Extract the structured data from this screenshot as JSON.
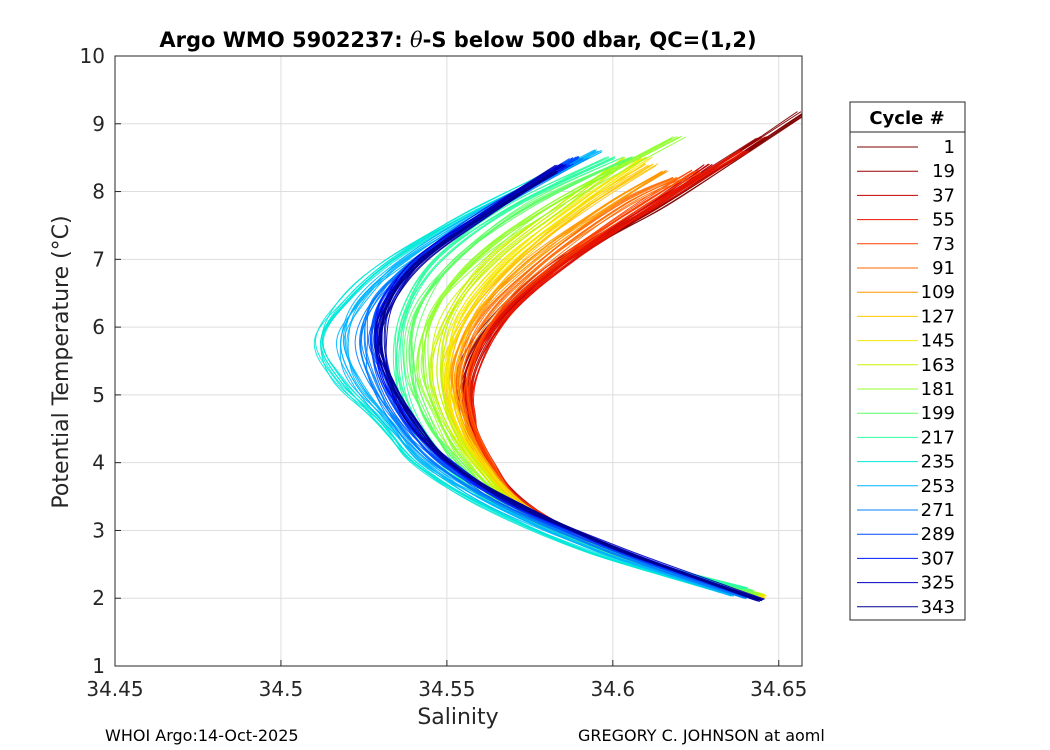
{
  "chart_data": {
    "type": "line",
    "title_prefix": "Argo WMO 5902237: ",
    "title_theta": "θ",
    "title_suffix": "-S below 500 dbar,  QC=(1,2)",
    "xlabel": "Salinity",
    "ylabel": "Potential Temperature (°C)",
    "xlim": [
      34.45,
      34.657
    ],
    "ylim": [
      1,
      10
    ],
    "xticks": [
      34.45,
      34.5,
      34.55,
      34.6,
      34.65
    ],
    "xtick_labels": [
      "34.45",
      "34.5",
      "34.55",
      "34.6",
      "34.65"
    ],
    "yticks": [
      1,
      2,
      3,
      4,
      5,
      6,
      7,
      8,
      9,
      10
    ],
    "ytick_labels": [
      "1",
      "2",
      "3",
      "4",
      "5",
      "6",
      "7",
      "8",
      "9",
      "10"
    ],
    "grid": true,
    "legend": {
      "title": "Cycle #",
      "placement": "right-outside",
      "entries": [
        "1",
        "19",
        "37",
        "55",
        "73",
        "91",
        "109",
        "127",
        "145",
        "163",
        "181",
        "199",
        "217",
        "235",
        "253",
        "271",
        "289",
        "307",
        "325",
        "343"
      ],
      "colors": [
        "#7f0000",
        "#990000",
        "#c40000",
        "#ea1500",
        "#ff4000",
        "#ff6a00",
        "#ff9800",
        "#ffc400",
        "#f4e800",
        "#c8f300",
        "#90ff2c",
        "#5cff66",
        "#2cffa0",
        "#00e8d8",
        "#00b4ff",
        "#0080ff",
        "#004cff",
        "#0014ff",
        "#0000c0",
        "#00008f"
      ]
    },
    "series": [
      {
        "name": "1",
        "color": "#7f0000",
        "points": [
          [
            34.6425,
            2.0
          ],
          [
            34.605,
            2.6
          ],
          [
            34.575,
            3.3
          ],
          [
            34.562,
            4.0
          ],
          [
            34.556,
            4.7
          ],
          [
            34.556,
            5.4
          ],
          [
            34.566,
            6.2
          ],
          [
            34.585,
            7.0
          ],
          [
            34.615,
            7.8
          ],
          [
            34.658,
            9.18
          ]
        ]
      },
      {
        "name": "19",
        "color": "#990000",
        "points": [
          [
            34.644,
            2.0
          ],
          [
            34.606,
            2.6
          ],
          [
            34.576,
            3.3
          ],
          [
            34.563,
            4.0
          ],
          [
            34.557,
            4.7
          ],
          [
            34.557,
            5.4
          ],
          [
            34.567,
            6.2
          ],
          [
            34.586,
            7.0
          ],
          [
            34.613,
            7.8
          ],
          [
            34.645,
            8.8
          ]
        ]
      },
      {
        "name": "37",
        "color": "#c40000",
        "points": [
          [
            34.644,
            2.0
          ],
          [
            34.606,
            2.6
          ],
          [
            34.576,
            3.3
          ],
          [
            34.563,
            4.0
          ],
          [
            34.557,
            4.7
          ],
          [
            34.558,
            5.4
          ],
          [
            34.568,
            6.2
          ],
          [
            34.587,
            7.0
          ],
          [
            34.612,
            7.8
          ],
          [
            34.63,
            8.4
          ]
        ]
      },
      {
        "name": "55",
        "color": "#ea1500",
        "points": [
          [
            34.6435,
            2.0
          ],
          [
            34.606,
            2.6
          ],
          [
            34.576,
            3.3
          ],
          [
            34.563,
            4.0
          ],
          [
            34.558,
            4.7
          ],
          [
            34.559,
            5.4
          ],
          [
            34.569,
            6.2
          ],
          [
            34.588,
            7.0
          ],
          [
            34.613,
            7.8
          ],
          [
            34.64,
            8.6
          ]
        ]
      },
      {
        "name": "73",
        "color": "#ff4000",
        "points": [
          [
            34.643,
            2.0
          ],
          [
            34.605,
            2.6
          ],
          [
            34.575,
            3.3
          ],
          [
            34.563,
            4.0
          ],
          [
            34.557,
            4.7
          ],
          [
            34.557,
            5.4
          ],
          [
            34.566,
            6.2
          ],
          [
            34.584,
            7.0
          ],
          [
            34.608,
            7.8
          ],
          [
            34.625,
            8.3
          ]
        ]
      },
      {
        "name": "91",
        "color": "#ff6a00",
        "points": [
          [
            34.6435,
            2.0
          ],
          [
            34.605,
            2.6
          ],
          [
            34.575,
            3.3
          ],
          [
            34.562,
            4.0
          ],
          [
            34.556,
            4.7
          ],
          [
            34.555,
            5.4
          ],
          [
            34.563,
            6.2
          ],
          [
            34.58,
            7.0
          ],
          [
            34.603,
            7.8
          ],
          [
            34.62,
            8.2
          ]
        ]
      },
      {
        "name": "109",
        "color": "#ff9800",
        "points": [
          [
            34.6445,
            2.0
          ],
          [
            34.606,
            2.6
          ],
          [
            34.575,
            3.3
          ],
          [
            34.561,
            4.0
          ],
          [
            34.554,
            4.7
          ],
          [
            34.552,
            5.4
          ],
          [
            34.559,
            6.2
          ],
          [
            34.575,
            7.0
          ],
          [
            34.598,
            7.8
          ],
          [
            34.615,
            8.3
          ]
        ]
      },
      {
        "name": "127",
        "color": "#ffc400",
        "points": [
          [
            34.6455,
            2.0
          ],
          [
            34.606,
            2.6
          ],
          [
            34.575,
            3.3
          ],
          [
            34.56,
            4.0
          ],
          [
            34.553,
            4.7
          ],
          [
            34.551,
            5.4
          ],
          [
            34.557,
            6.2
          ],
          [
            34.572,
            7.0
          ],
          [
            34.593,
            7.8
          ],
          [
            34.612,
            8.4
          ]
        ]
      },
      {
        "name": "145",
        "color": "#f4e800",
        "points": [
          [
            34.646,
            2.03
          ],
          [
            34.606,
            2.6
          ],
          [
            34.574,
            3.3
          ],
          [
            34.56,
            4.0
          ],
          [
            34.552,
            4.7
          ],
          [
            34.55,
            5.4
          ],
          [
            34.555,
            6.2
          ],
          [
            34.569,
            7.0
          ],
          [
            34.59,
            7.8
          ],
          [
            34.61,
            8.5
          ]
        ]
      },
      {
        "name": "163",
        "color": "#c8f300",
        "points": [
          [
            34.645,
            2.05
          ],
          [
            34.604,
            2.6
          ],
          [
            34.573,
            3.3
          ],
          [
            34.558,
            4.0
          ],
          [
            34.55,
            4.7
          ],
          [
            34.547,
            5.4
          ],
          [
            34.551,
            6.2
          ],
          [
            34.564,
            7.0
          ],
          [
            34.585,
            7.8
          ],
          [
            34.605,
            8.5
          ]
        ]
      },
      {
        "name": "181",
        "color": "#90ff2c",
        "points": [
          [
            34.644,
            2.05
          ],
          [
            34.603,
            2.6
          ],
          [
            34.572,
            3.3
          ],
          [
            34.556,
            4.0
          ],
          [
            34.547,
            4.7
          ],
          [
            34.543,
            5.4
          ],
          [
            34.546,
            6.2
          ],
          [
            34.559,
            7.0
          ],
          [
            34.582,
            7.8
          ],
          [
            34.62,
            8.8
          ]
        ]
      },
      {
        "name": "199",
        "color": "#5cff66",
        "points": [
          [
            34.642,
            2.1
          ],
          [
            34.6,
            2.65
          ],
          [
            34.569,
            3.3
          ],
          [
            34.553,
            4.0
          ],
          [
            34.543,
            4.7
          ],
          [
            34.539,
            5.4
          ],
          [
            34.541,
            6.2
          ],
          [
            34.553,
            7.0
          ],
          [
            34.575,
            7.8
          ],
          [
            34.605,
            8.5
          ]
        ]
      },
      {
        "name": "217",
        "color": "#2cffa0",
        "points": [
          [
            34.64,
            2.15
          ],
          [
            34.598,
            2.7
          ],
          [
            34.566,
            3.35
          ],
          [
            34.549,
            4.0
          ],
          [
            34.539,
            4.7
          ],
          [
            34.535,
            5.4
          ],
          [
            34.537,
            6.2
          ],
          [
            34.547,
            7.0
          ],
          [
            34.57,
            7.8
          ],
          [
            34.6,
            8.5
          ]
        ]
      },
      {
        "name": "235",
        "color": "#00e8d8",
        "points": [
          [
            34.633,
            2.1
          ],
          [
            34.592,
            2.7
          ],
          [
            34.56,
            3.4
          ],
          [
            34.541,
            4.0
          ],
          [
            34.53,
            4.6
          ],
          [
            34.518,
            5.2
          ],
          [
            34.512,
            5.8
          ],
          [
            34.52,
            6.4
          ],
          [
            34.534,
            7.0
          ],
          [
            34.558,
            7.7
          ],
          [
            34.592,
            8.5
          ]
        ]
      },
      {
        "name": "253",
        "color": "#00b4ff",
        "points": [
          [
            34.636,
            2.05
          ],
          [
            34.595,
            2.7
          ],
          [
            34.563,
            3.4
          ],
          [
            34.543,
            4.0
          ],
          [
            34.532,
            4.6
          ],
          [
            34.522,
            5.2
          ],
          [
            34.518,
            5.8
          ],
          [
            34.524,
            6.4
          ],
          [
            34.537,
            7.0
          ],
          [
            34.56,
            7.7
          ],
          [
            34.595,
            8.6
          ]
        ]
      },
      {
        "name": "271",
        "color": "#0080ff",
        "points": [
          [
            34.64,
            2.0
          ],
          [
            34.598,
            2.7
          ],
          [
            34.566,
            3.4
          ],
          [
            34.546,
            4.0
          ],
          [
            34.535,
            4.6
          ],
          [
            34.527,
            5.2
          ],
          [
            34.524,
            5.8
          ],
          [
            34.528,
            6.4
          ],
          [
            34.54,
            7.0
          ],
          [
            34.562,
            7.7
          ],
          [
            34.59,
            8.5
          ]
        ]
      },
      {
        "name": "289",
        "color": "#004cff",
        "points": [
          [
            34.642,
            2.0
          ],
          [
            34.6,
            2.7
          ],
          [
            34.568,
            3.4
          ],
          [
            34.548,
            4.0
          ],
          [
            34.537,
            4.6
          ],
          [
            34.53,
            5.2
          ],
          [
            34.527,
            5.8
          ],
          [
            34.53,
            6.4
          ],
          [
            34.541,
            7.0
          ],
          [
            34.561,
            7.7
          ],
          [
            34.588,
            8.5
          ]
        ]
      },
      {
        "name": "307",
        "color": "#0014ff",
        "points": [
          [
            34.644,
            1.98
          ],
          [
            34.602,
            2.7
          ],
          [
            34.57,
            3.4
          ],
          [
            34.55,
            4.0
          ],
          [
            34.539,
            4.6
          ],
          [
            34.532,
            5.2
          ],
          [
            34.529,
            5.8
          ],
          [
            34.532,
            6.4
          ],
          [
            34.542,
            7.0
          ],
          [
            34.562,
            7.7
          ],
          [
            34.586,
            8.4
          ]
        ]
      },
      {
        "name": "325",
        "color": "#0000c0",
        "points": [
          [
            34.645,
            1.97
          ],
          [
            34.603,
            2.7
          ],
          [
            34.571,
            3.4
          ],
          [
            34.551,
            4.0
          ],
          [
            34.54,
            4.6
          ],
          [
            34.533,
            5.2
          ],
          [
            34.53,
            5.8
          ],
          [
            34.533,
            6.4
          ],
          [
            34.543,
            7.0
          ],
          [
            34.563,
            7.7
          ],
          [
            34.585,
            8.4
          ]
        ]
      },
      {
        "name": "343",
        "color": "#00008f",
        "points": [
          [
            34.6445,
            1.97
          ],
          [
            34.603,
            2.7
          ],
          [
            34.571,
            3.4
          ],
          [
            34.551,
            4.0
          ],
          [
            34.54,
            4.6
          ],
          [
            34.533,
            5.2
          ],
          [
            34.53,
            5.8
          ],
          [
            34.533,
            6.4
          ],
          [
            34.543,
            7.0
          ],
          [
            34.563,
            7.7
          ],
          [
            34.583,
            8.3
          ]
        ]
      }
    ]
  },
  "footer": {
    "left": "WHOI Argo:14-Oct-2025",
    "right": "GREGORY C. JOHNSON at aoml"
  }
}
